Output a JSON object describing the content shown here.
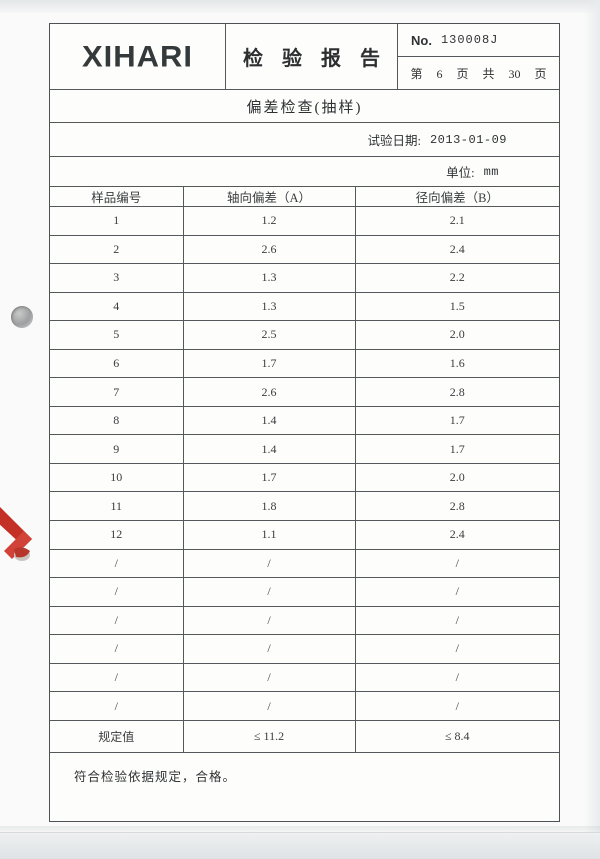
{
  "header": {
    "logo": "XIHARI",
    "title": "检 验 报 告",
    "no_label": "No.",
    "no_value": "130008J",
    "page_info": "第 6 页 共 30 页"
  },
  "section": {
    "title": "偏差检查(抽样)",
    "test_date_label": "试验日期:",
    "test_date": "2013-01-09",
    "unit_label": "单位:",
    "unit_value": "mm",
    "conclusion": "符合检验依据规定，合格。"
  },
  "table": {
    "headers": [
      "样品编号",
      "轴向偏差（A）",
      "径向偏差（B）"
    ],
    "rows": [
      [
        "1",
        "1.2",
        "2.1"
      ],
      [
        "2",
        "2.6",
        "2.4"
      ],
      [
        "3",
        "1.3",
        "2.2"
      ],
      [
        "4",
        "1.3",
        "1.5"
      ],
      [
        "5",
        "2.5",
        "2.0"
      ],
      [
        "6",
        "1.7",
        "1.6"
      ],
      [
        "7",
        "2.6",
        "2.8"
      ],
      [
        "8",
        "1.4",
        "1.7"
      ],
      [
        "9",
        "1.4",
        "1.7"
      ],
      [
        "10",
        "1.7",
        "2.0"
      ],
      [
        "11",
        "1.8",
        "2.8"
      ],
      [
        "12",
        "1.1",
        "2.4"
      ],
      [
        "/",
        "/",
        "/"
      ],
      [
        "/",
        "/",
        "/"
      ],
      [
        "/",
        "/",
        "/"
      ],
      [
        "/",
        "/",
        "/"
      ],
      [
        "/",
        "/",
        "/"
      ],
      [
        "/",
        "/",
        "/"
      ],
      [
        "规定值",
        "≤ 11.2",
        "≤ 8.4"
      ]
    ],
    "spec_row_label": "规定值"
  },
  "decorations": {
    "binder_hole": "binder-hole",
    "red_ribbon": "red-ribbon",
    "accent_red": "#c43026",
    "border_color": "#55585a"
  }
}
